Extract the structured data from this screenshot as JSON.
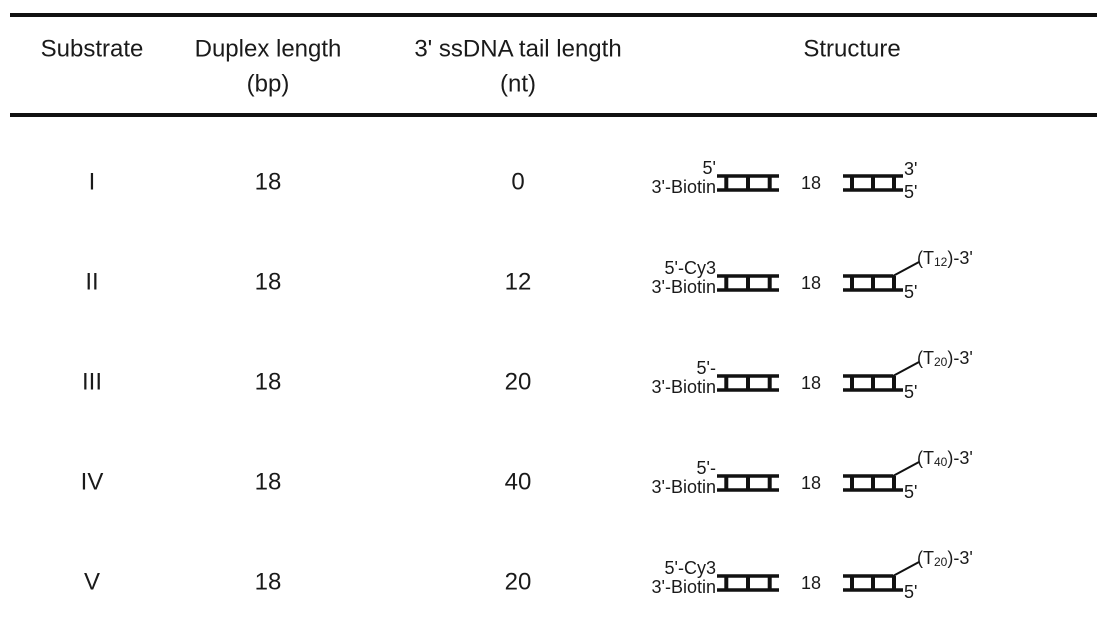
{
  "table": {
    "headers": [
      [
        "Substrate"
      ],
      [
        "Duplex length",
        "(bp)"
      ],
      [
        "3' ssDNA tail length",
        "(nt)"
      ],
      [
        "Structure"
      ]
    ],
    "rows": [
      {
        "substrate": "I",
        "duplex": "18",
        "tail": "0",
        "structure": {
          "top_left": "5'",
          "bottom_left": "3'-Biotin",
          "middle": "18",
          "right_top": "3'",
          "right_bottom": "5'"
        }
      },
      {
        "substrate": "II",
        "duplex": "18",
        "tail": "12",
        "structure": {
          "top_left": "5'-Cy3",
          "bottom_left": "3'-Biotin",
          "middle": "18",
          "right_top": {
            "prefix": "(T",
            "sub": "12",
            "suffix": ")-3'"
          },
          "right_bottom": "5'"
        }
      },
      {
        "substrate": "III",
        "duplex": "18",
        "tail": "20",
        "structure": {
          "top_left": "5'-",
          "bottom_left": "3'-Biotin",
          "middle": "18",
          "right_top": {
            "prefix": "(T",
            "sub": "20",
            "suffix": ")-3'"
          },
          "right_bottom": "5'"
        }
      },
      {
        "substrate": "IV",
        "duplex": "18",
        "tail": "40",
        "structure": {
          "top_left": "5'-",
          "bottom_left": "3'-Biotin",
          "middle": "18",
          "right_top": {
            "prefix": "(T",
            "sub": "40",
            "suffix": ")-3'"
          },
          "right_bottom": "5'"
        }
      },
      {
        "substrate": "V",
        "duplex": "18",
        "tail": "20",
        "structure": {
          "top_left": "5'-Cy3",
          "bottom_left": "3'-Biotin",
          "middle": "18",
          "right_top": {
            "prefix": "(T",
            "sub": "20",
            "suffix": ")-3'"
          },
          "right_bottom": "5'"
        }
      }
    ]
  }
}
